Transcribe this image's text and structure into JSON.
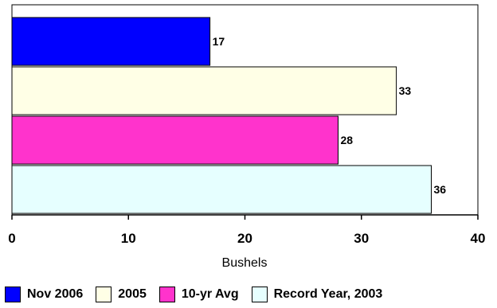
{
  "chart_data": {
    "type": "bar",
    "orientation": "horizontal",
    "categories": [
      "Nov 2006",
      "2005",
      "10-yr Avg",
      "Record Year, 2003"
    ],
    "values": [
      17,
      33,
      28,
      36
    ],
    "colors": [
      "#0000ff",
      "#ffffe6",
      "#ff33cc",
      "#e6ffff"
    ],
    "data_labels": [
      "17",
      "33",
      "28",
      "36"
    ],
    "title": "",
    "xlabel": "Bushels",
    "ylabel": "",
    "xlim": [
      0,
      40
    ],
    "xticks": [
      0,
      10,
      20,
      30,
      40
    ],
    "xtick_labels": [
      "0",
      "10",
      "20",
      "30",
      "40"
    ],
    "grid": false,
    "legend_position": "bottom",
    "legend": [
      {
        "label": "Nov 2006",
        "color": "#0000ff"
      },
      {
        "label": "2005",
        "color": "#ffffe6"
      },
      {
        "label": "10-yr Avg",
        "color": "#ff33cc"
      },
      {
        "label": "Record Year, 2003",
        "color": "#e6ffff"
      }
    ]
  }
}
